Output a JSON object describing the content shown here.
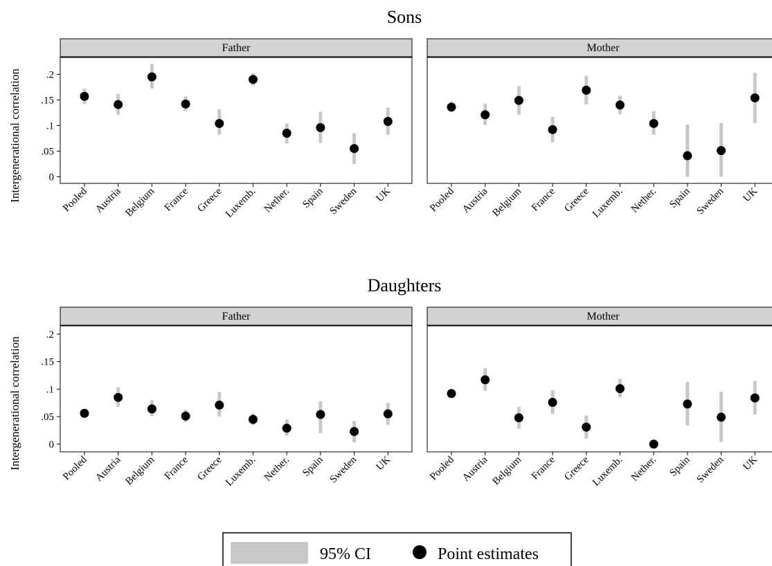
{
  "legend": {
    "ci_label": "95% CI",
    "point_label": "Point estimates",
    "ci_color": "#c8c8c8",
    "point_color": "#000000"
  },
  "chart_data": [
    {
      "type": "scatter",
      "title": "Sons",
      "ylabel": "Intergenerational correlation",
      "panels": [
        {
          "label": "Father",
          "categories": [
            "Pooled",
            "Austria",
            "Belgium",
            "France",
            "Greece",
            "Luxemb.",
            "Nether.",
            "Spain",
            "Sweden",
            "UK"
          ],
          "yticks": [
            ".2",
            ".15",
            ".1",
            ".05",
            "0"
          ],
          "estimates": [
            0.157,
            0.141,
            0.195,
            0.142,
            0.104,
            0.19,
            0.085,
            0.096,
            0.055,
            0.108
          ],
          "ci_low": [
            0.142,
            0.121,
            0.172,
            0.128,
            0.082,
            0.178,
            0.065,
            0.066,
            0.025,
            0.082
          ],
          "ci_high": [
            0.172,
            0.162,
            0.22,
            0.157,
            0.132,
            0.202,
            0.104,
            0.127,
            0.085,
            0.135
          ]
        },
        {
          "label": "Mother",
          "categories": [
            "Pooled",
            "Austria",
            "Belgium",
            "France",
            "Greece",
            "Luxemb.",
            "Nether.",
            "Spain",
            "Sweden",
            "UK"
          ],
          "yticks": [],
          "estimates": [
            0.136,
            0.121,
            0.149,
            0.092,
            0.169,
            0.14,
            0.104,
            0.041,
            0.051,
            0.154
          ],
          "ci_low": [
            0.128,
            0.101,
            0.121,
            0.067,
            0.141,
            0.122,
            0.082,
            0.0,
            0.0,
            0.105
          ],
          "ci_high": [
            0.146,
            0.143,
            0.177,
            0.117,
            0.197,
            0.158,
            0.128,
            0.102,
            0.105,
            0.203
          ]
        }
      ],
      "ylim": [
        -0.013,
        0.233
      ]
    },
    {
      "type": "scatter",
      "title": "Daughters",
      "ylabel": "Intergenerational correlation",
      "panels": [
        {
          "label": "Father",
          "categories": [
            "Pooled",
            "Austria",
            "Belgium",
            "France",
            "Greece",
            "Luxemb.",
            "Nether.",
            "Spain",
            "Sweden",
            "UK"
          ],
          "yticks": [
            ".2",
            ".15",
            ".1",
            ".05",
            "0"
          ],
          "estimates": [
            0.056,
            0.085,
            0.064,
            0.051,
            0.071,
            0.045,
            0.029,
            0.054,
            0.023,
            0.055
          ],
          "ci_low": [
            0.05,
            0.068,
            0.051,
            0.04,
            0.05,
            0.035,
            0.015,
            0.02,
            0.003,
            0.035
          ],
          "ci_high": [
            0.062,
            0.103,
            0.08,
            0.063,
            0.095,
            0.056,
            0.045,
            0.078,
            0.042,
            0.075
          ]
        },
        {
          "label": "Mother",
          "categories": [
            "Pooled",
            "Austria",
            "Belgium",
            "France",
            "Greece",
            "Luxemb.",
            "Nether.",
            "Spain",
            "Sweden",
            "UK"
          ],
          "yticks": [],
          "estimates": [
            0.092,
            0.117,
            0.048,
            0.076,
            0.031,
            0.101,
            0.0,
            0.073,
            0.049,
            0.084
          ],
          "ci_low": [
            0.084,
            0.097,
            0.028,
            0.055,
            0.01,
            0.085,
            -0.005,
            0.034,
            0.004,
            0.054
          ],
          "ci_high": [
            0.1,
            0.138,
            0.068,
            0.098,
            0.052,
            0.119,
            0.003,
            0.113,
            0.095,
            0.115
          ]
        }
      ],
      "ylim": [
        -0.014,
        0.215
      ]
    }
  ]
}
